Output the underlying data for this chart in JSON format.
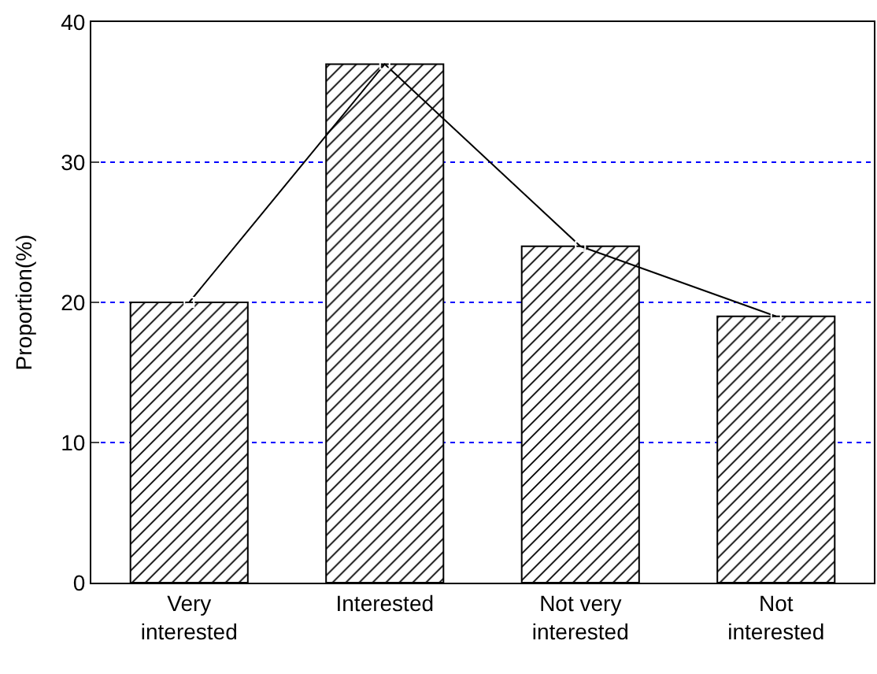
{
  "chart_data": {
    "type": "bar",
    "ylabel": "Proportion(%)",
    "categories": [
      "Very interested",
      "Interested",
      "Not very interested",
      "Not interested"
    ],
    "series": [
      {
        "color": "#000000",
        "values": [
          20,
          37,
          24,
          19
        ]
      },
      {
        "type": "line",
        "color": "#000000",
        "values": [
          20,
          37,
          24,
          19
        ]
      }
    ],
    "ylim": [
      0,
      40
    ],
    "yticks": [
      0,
      10,
      20,
      30,
      40
    ],
    "grid": "y",
    "marker": "square",
    "line_style": "solid"
  }
}
